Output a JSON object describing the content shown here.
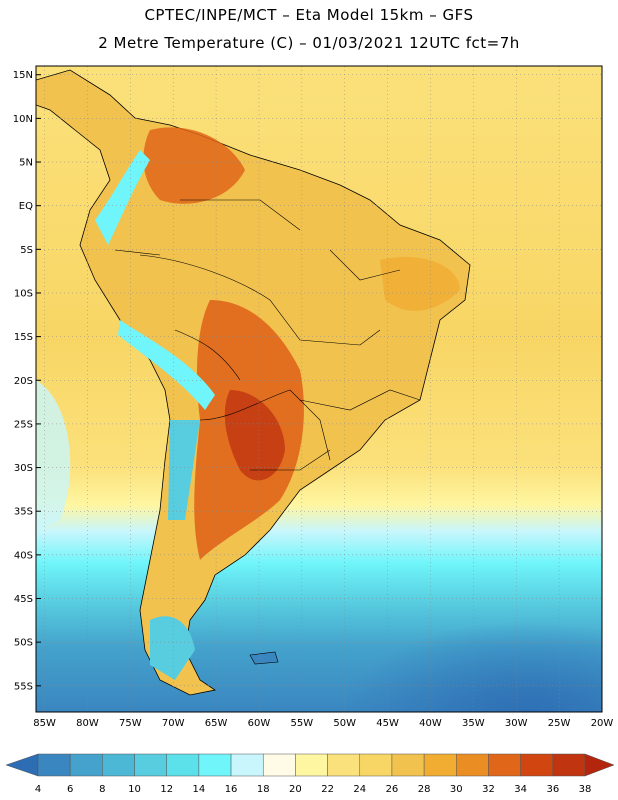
{
  "header": {
    "line1": "CPTEC/INPE/MCT –  Eta Model 15km – GFS",
    "line2": "2 Metre Temperature (C) – 01/03/2021 12UTC fct=7h"
  },
  "map": {
    "lat_labels": [
      "15N",
      "10N",
      "5N",
      "EQ",
      "5S",
      "10S",
      "15S",
      "20S",
      "25S",
      "30S",
      "35S",
      "40S",
      "45S",
      "50S",
      "55S"
    ],
    "lon_labels": [
      "85W",
      "80W",
      "75W",
      "70W",
      "65W",
      "60W",
      "55W",
      "50W",
      "45W",
      "40W",
      "35W",
      "30W",
      "25W",
      "20W"
    ],
    "extent": {
      "lon_min": -86,
      "lon_max": -20,
      "lat_min": -58,
      "lat_max": 16
    }
  },
  "colorbar": {
    "ticks": [
      "4",
      "6",
      "8",
      "10",
      "12",
      "14",
      "16",
      "18",
      "20",
      "22",
      "24",
      "26",
      "28",
      "30",
      "32",
      "34",
      "36",
      "38"
    ],
    "colors": [
      "#2d6db4",
      "#3a86c0",
      "#44a2cc",
      "#4cb8d6",
      "#58cde0",
      "#5ce0ea",
      "#6ff5fa",
      "#c8f6fc",
      "#fffbe6",
      "#fff6a2",
      "#fbe17b",
      "#f8d665",
      "#f2c24f",
      "#f0ad32",
      "#ea8e24",
      "#e0661a",
      "#d14511",
      "#c03410",
      "#b3250d"
    ]
  }
}
